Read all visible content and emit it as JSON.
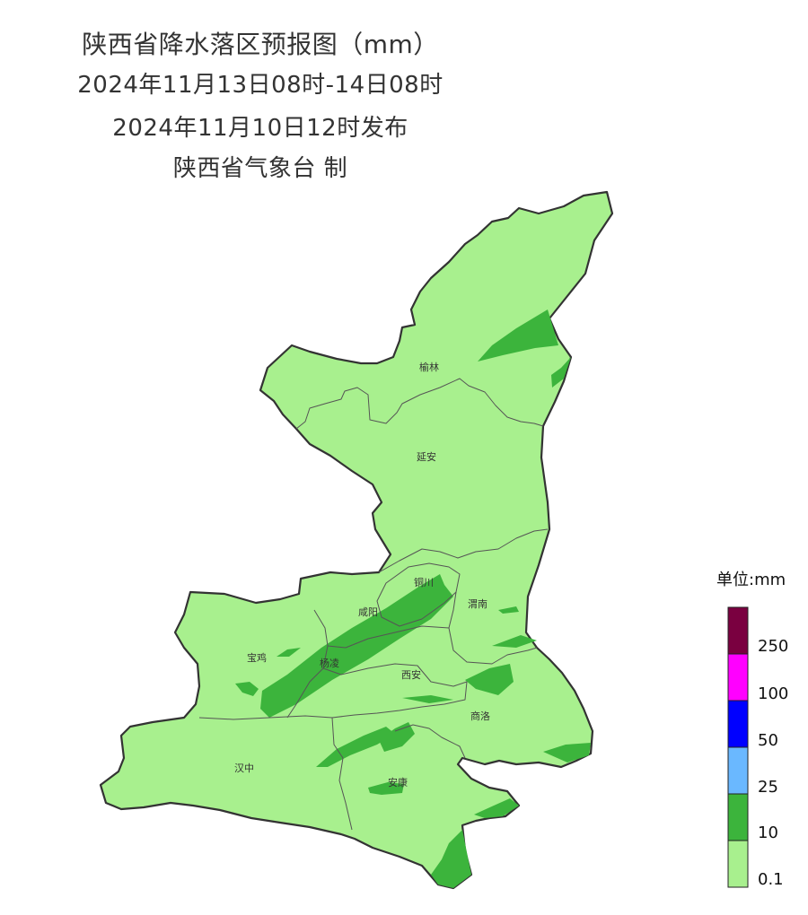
{
  "title": {
    "line1": "陕西省降水落区预报图（mm）",
    "line2": "2024年11月13日08时-14日08时",
    "line3": "2024年11月10日12时发布",
    "line4": "陕西省气象台 制"
  },
  "cities": [
    {
      "key": "yulin",
      "name": "榆林"
    },
    {
      "key": "yanan",
      "name": "延安"
    },
    {
      "key": "tongchuan",
      "name": "铜川"
    },
    {
      "key": "xianyang",
      "name": "咸阳"
    },
    {
      "key": "weinan",
      "name": "渭南"
    },
    {
      "key": "baoji",
      "name": "宝鸡"
    },
    {
      "key": "yangling",
      "name": "杨凌"
    },
    {
      "key": "xian",
      "name": "西安"
    },
    {
      "key": "shangluo",
      "name": "商洛"
    },
    {
      "key": "hanzhong",
      "name": "汉中"
    },
    {
      "key": "ankang",
      "name": "安康"
    }
  ],
  "legend": {
    "title": "单位:mm",
    "levels": [
      {
        "label": "0.1",
        "color": "#a8f08e"
      },
      {
        "label": "10",
        "color": "#3cb43c"
      },
      {
        "label": "25",
        "color": "#6ab8ff"
      },
      {
        "label": "50",
        "color": "#0000ff"
      },
      {
        "label": "100",
        "color": "#ff00ff"
      },
      {
        "label": "250",
        "color": "#7a0040"
      }
    ]
  }
}
